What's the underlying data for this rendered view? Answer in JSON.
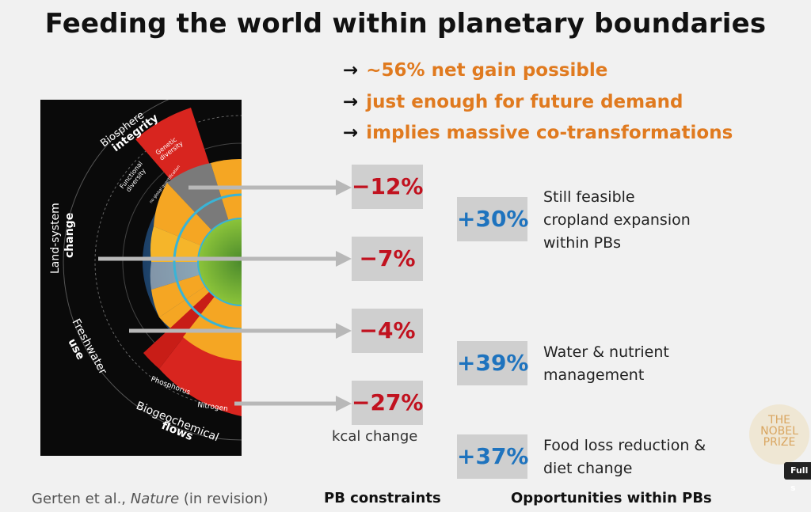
{
  "title": "Feeding the world within planetary boundaries",
  "bullets": [
    {
      "arrow": "→",
      "text": "~56% net gain possible"
    },
    {
      "arrow": "→",
      "text": "just enough for future demand"
    },
    {
      "arrow": "→",
      "text": "implies massive co-transformations"
    }
  ],
  "graphic": {
    "labels": {
      "biosphere_line1": "Biosphere",
      "biosphere_line2": "integrity",
      "genetic_line1": "Genetic",
      "genetic_line2": "diversity",
      "functional_line1": "Functional",
      "functional_line2": "diversity",
      "functional_inner": "no global quantification",
      "land_line1": "Land-system",
      "land_line2": "change",
      "fresh_line1": "Freshwater",
      "fresh_line2": "use",
      "phosphorus": "Phosphorus",
      "nitrogen": "Nitrogen",
      "bio_line1": "Biogeochemical",
      "bio_line2": "flows"
    }
  },
  "kcal_changes": [
    "−12%",
    "−7%",
    "−4%",
    "−27%"
  ],
  "kcal_caption": "kcal change",
  "opportunities": [
    {
      "value": "+30%",
      "lines": [
        "Still feasible",
        "cropland expansion",
        "within PBs"
      ]
    },
    {
      "value": "+39%",
      "lines": [
        "Water & nutrient",
        "management"
      ]
    },
    {
      "value": "+37%",
      "lines": [
        "Food loss reduction &",
        "diet change"
      ]
    }
  ],
  "footer": {
    "citation_authors": "Gerten et al., ",
    "citation_journal": "Nature",
    "citation_status": " (in revision)",
    "pb_constraints": "PB constraints",
    "opportunities": "Opportunities within PBs"
  },
  "logo": {
    "line1": "THE",
    "line2": "NOBEL",
    "line3": "PRIZE"
  },
  "fullscreen_label": "Full s",
  "colors": {
    "orange": "#e07a1f",
    "red": "#c1121f",
    "blue": "#1e73be",
    "box": "#cfcfcf"
  }
}
